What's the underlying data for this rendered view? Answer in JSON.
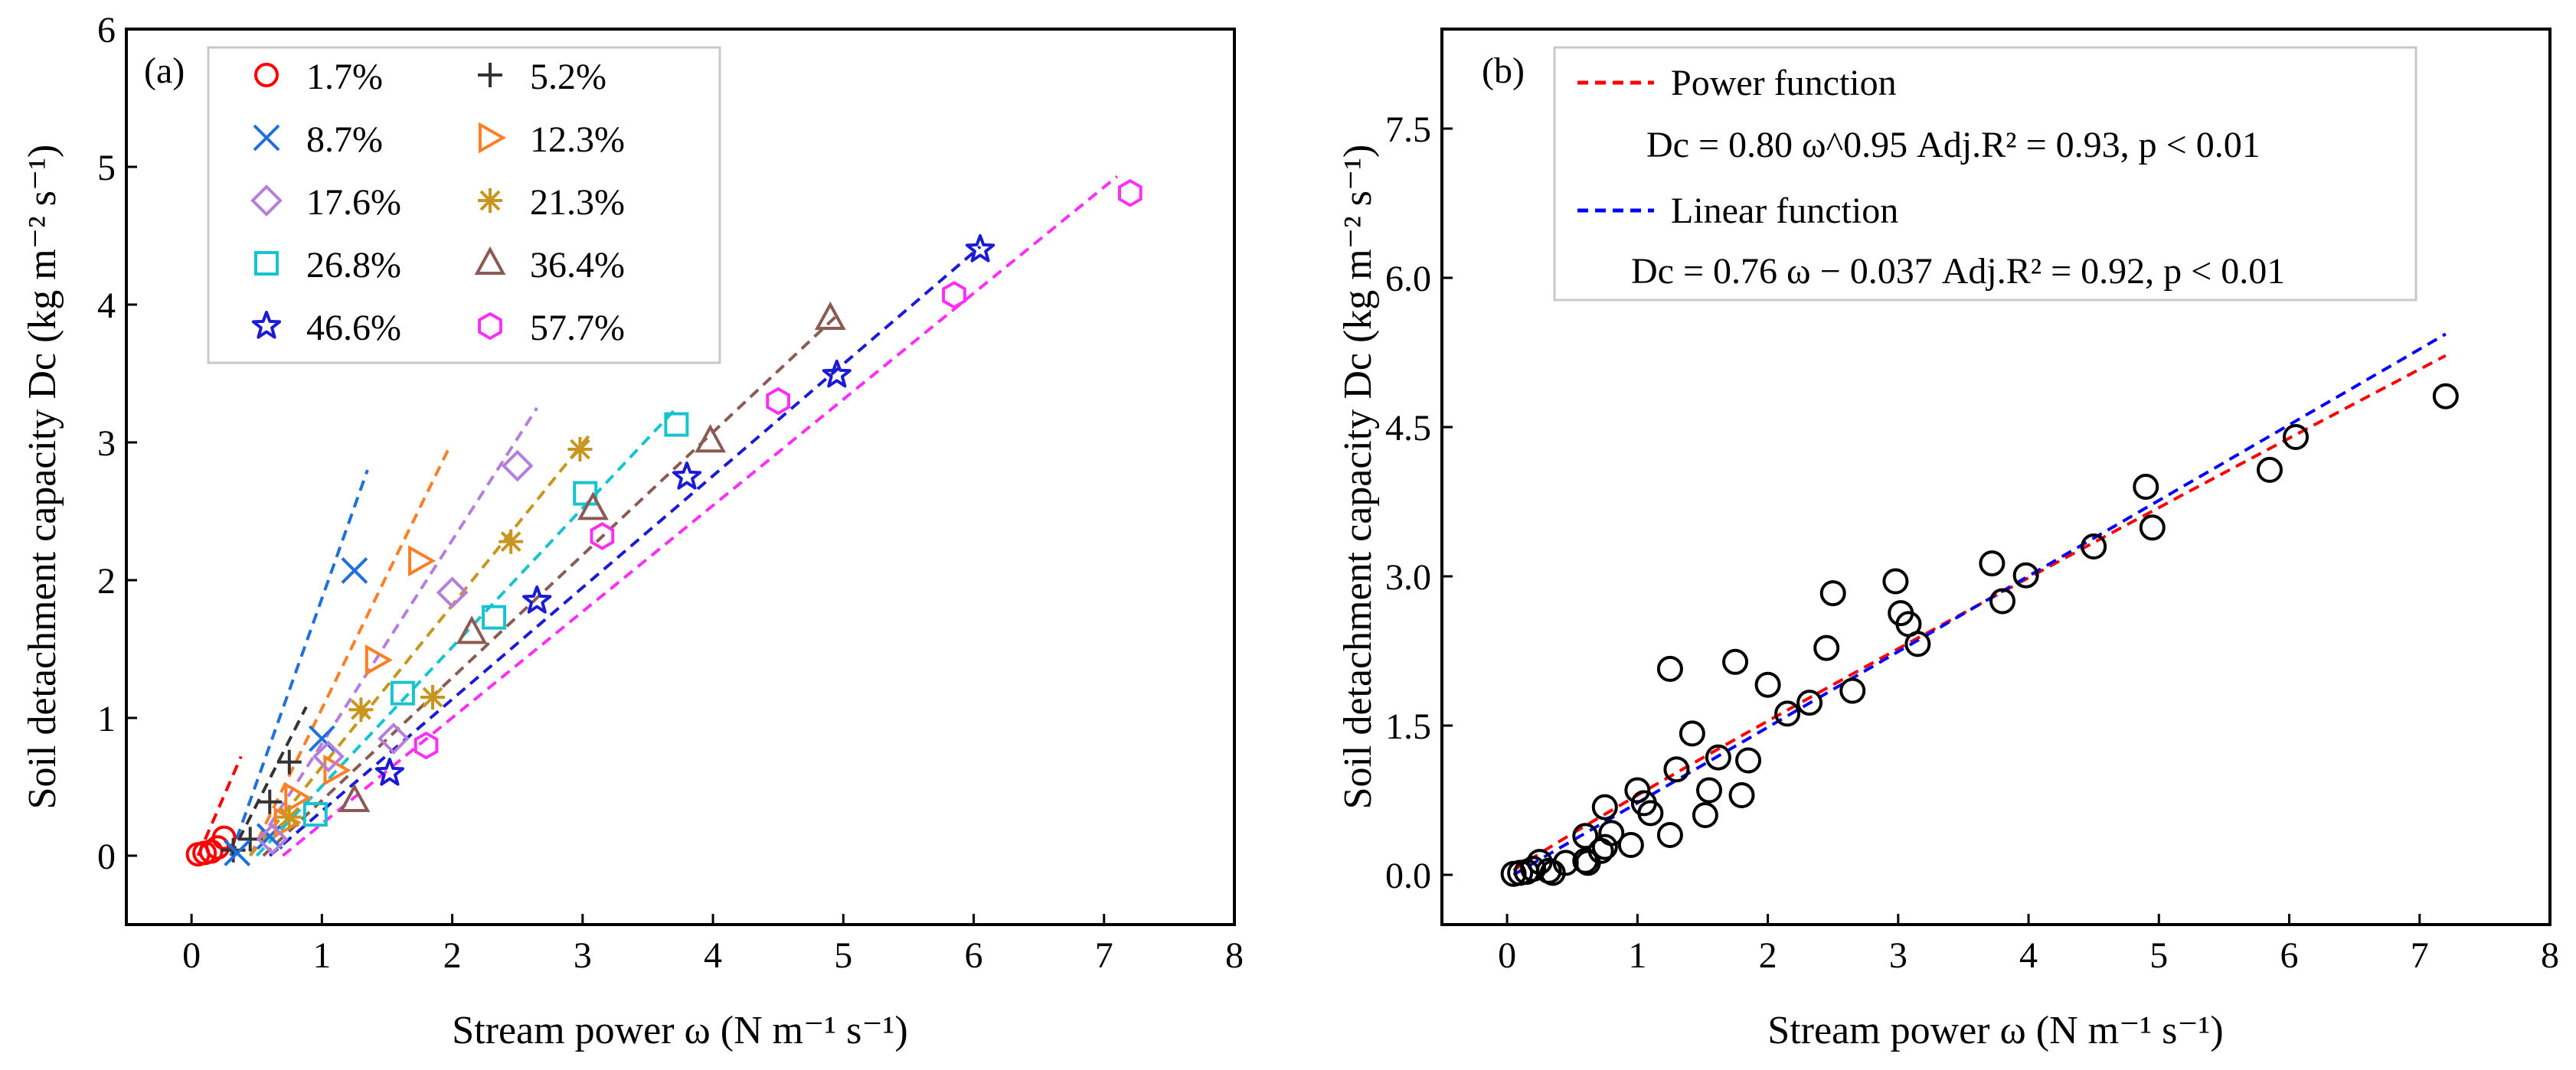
{
  "panels": {
    "a": {
      "label": "(a)",
      "xlabel": "Stream power ω (N m⁻¹ s⁻¹)",
      "ylabel": "Soil detachment capacity Dc (kg m⁻² s⁻¹)",
      "xlim": [
        -0.5,
        8
      ],
      "ylim": [
        -0.5,
        6
      ],
      "xticks": [
        "0",
        "1",
        "2",
        "3",
        "4",
        "5",
        "6",
        "7",
        "8"
      ],
      "yticks": [
        "0",
        "1",
        "2",
        "3",
        "4",
        "5",
        "6"
      ],
      "legend_entries": [
        "1.7%",
        "5.2%",
        "8.7%",
        "12.3%",
        "17.6%",
        "21.3%",
        "26.8%",
        "36.4%",
        "46.6%",
        "57.7%"
      ]
    },
    "b": {
      "label": "(b)",
      "xlabel": "Stream power ω (N m⁻¹ s⁻¹)",
      "ylabel": "Soil detachment capacity Dc (kg m⁻² s⁻¹)",
      "xlim": [
        -0.5,
        8
      ],
      "ylim": [
        -0.5,
        8.5
      ],
      "xticks": [
        "0",
        "1",
        "2",
        "3",
        "4",
        "5",
        "6",
        "7",
        "8"
      ],
      "yticks": [
        "0.0",
        "1.5",
        "3.0",
        "4.5",
        "6.0",
        "7.5"
      ],
      "legend": {
        "power_label": "Power function",
        "power_eq": "Dc = 0.80 ω^0.95   Adj.R² = 0.93,  p < 0.01",
        "linear_label": "Linear function",
        "linear_eq": "Dc = 0.76 ω − 0.037 Adj.R² = 0.92,  p < 0.01"
      }
    }
  },
  "chart_data": [
    {
      "type": "scatter",
      "panel": "a",
      "series": [
        {
          "name": "1.7%",
          "color": "#ff0000",
          "marker": "circle",
          "x": [
            0.05,
            0.1,
            0.15,
            0.2,
            0.25
          ],
          "y": [
            0.01,
            0.02,
            0.03,
            0.06,
            0.13
          ],
          "fit": [
            [
              0.05,
              0.0
            ],
            [
              0.38,
              0.72
            ]
          ]
        },
        {
          "name": "5.2%",
          "color": "#333333",
          "marker": "plus",
          "x": [
            0.32,
            0.45,
            0.6,
            0.75
          ],
          "y": [
            0.04,
            0.12,
            0.39,
            0.68
          ],
          "fit": [
            [
              0.3,
              0.0
            ],
            [
              0.88,
              1.08
            ]
          ]
        },
        {
          "name": "8.7%",
          "color": "#1f6fdd",
          "marker": "x",
          "x": [
            0.35,
            0.6,
            1.0,
            1.25
          ],
          "y": [
            0.02,
            0.14,
            0.85,
            2.07
          ],
          "fit": [
            [
              0.3,
              0.0
            ],
            [
              1.35,
              2.8
            ]
          ]
        },
        {
          "name": "12.3%",
          "color": "#ff7f27",
          "marker": "tri-right",
          "x": [
            0.72,
            0.8,
            1.1,
            1.42,
            1.75
          ],
          "y": [
            0.24,
            0.42,
            0.62,
            1.42,
            2.14
          ],
          "fit": [
            [
              0.45,
              0.0
            ],
            [
              1.97,
              2.95
            ]
          ]
        },
        {
          "name": "17.6%",
          "color": "#b57edc",
          "marker": "diamond",
          "x": [
            0.62,
            1.05,
            1.55,
            2.0,
            2.5
          ],
          "y": [
            0.12,
            0.72,
            0.85,
            1.91,
            2.83
          ],
          "fit": [
            [
              0.45,
              0.0
            ],
            [
              2.65,
              3.25
            ]
          ]
        },
        {
          "name": "21.3%",
          "color": "#c8961e",
          "marker": "asterisk",
          "x": [
            0.75,
            1.3,
            1.85,
            2.45,
            2.98
          ],
          "y": [
            0.28,
            1.06,
            1.15,
            2.28,
            2.95
          ],
          "fit": [
            [
              0.45,
              0.0
            ],
            [
              3.05,
              3.05
            ]
          ]
        },
        {
          "name": "26.8%",
          "color": "#17c3cf",
          "marker": "square",
          "x": [
            0.95,
            1.62,
            2.32,
            3.02,
            3.72
          ],
          "y": [
            0.3,
            1.18,
            1.73,
            2.63,
            3.13
          ],
          "fit": [
            [
              0.5,
              0.0
            ],
            [
              3.72,
              3.25
            ]
          ]
        },
        {
          "name": "36.4%",
          "color": "#8b5a52",
          "marker": "triangle",
          "x": [
            1.25,
            2.15,
            3.08,
            3.98,
            4.9
          ],
          "y": [
            0.4,
            1.62,
            2.52,
            3.01,
            3.9
          ],
          "fit": [
            [
              0.55,
              0.0
            ],
            [
              4.95,
              3.92
            ]
          ]
        },
        {
          "name": "46.6%",
          "color": "#1b1bd6",
          "marker": "star",
          "x": [
            1.52,
            2.65,
            3.8,
            4.95,
            6.05
          ],
          "y": [
            0.6,
            1.85,
            2.75,
            3.49,
            4.4
          ],
          "fit": [
            [
              0.6,
              0.0
            ],
            [
              6.05,
              4.42
            ]
          ]
        },
        {
          "name": "57.7%",
          "color": "#ff2ef7",
          "marker": "hexagon",
          "x": [
            1.8,
            3.15,
            4.5,
            5.85,
            7.2
          ],
          "y": [
            0.8,
            2.32,
            3.3,
            4.07,
            4.81
          ],
          "fit": [
            [
              0.7,
              0.0
            ],
            [
              7.1,
              4.93
            ]
          ]
        }
      ]
    },
    {
      "type": "scatter",
      "panel": "b",
      "points": {
        "x": [
          0.05,
          0.1,
          0.15,
          0.2,
          0.25,
          0.32,
          0.45,
          0.6,
          0.75,
          0.35,
          0.6,
          1.0,
          1.25,
          0.72,
          0.8,
          1.1,
          1.42,
          1.75,
          0.62,
          1.05,
          1.55,
          2.0,
          2.5,
          0.75,
          1.3,
          1.85,
          2.45,
          2.98,
          0.95,
          1.62,
          2.32,
          3.02,
          3.72,
          1.25,
          2.15,
          3.08,
          3.98,
          4.9,
          1.52,
          2.65,
          3.8,
          4.95,
          6.05,
          1.8,
          3.15,
          4.5,
          5.85,
          7.2
        ],
        "y": [
          0.01,
          0.02,
          0.03,
          0.06,
          0.13,
          0.04,
          0.12,
          0.39,
          0.68,
          0.02,
          0.14,
          0.85,
          2.07,
          0.24,
          0.42,
          0.62,
          1.42,
          2.14,
          0.12,
          0.72,
          0.85,
          1.91,
          2.83,
          0.28,
          1.06,
          1.15,
          2.28,
          2.95,
          0.3,
          1.18,
          1.73,
          2.63,
          3.13,
          0.4,
          1.62,
          2.52,
          3.01,
          3.9,
          0.6,
          1.85,
          2.75,
          3.49,
          4.4,
          0.8,
          2.32,
          3.3,
          4.07,
          4.81
        ]
      },
      "fits": [
        {
          "name": "Power function",
          "color": "#ff0000",
          "a": 0.8,
          "b": 0.95,
          "x_range": [
            0.05,
            7.2
          ]
        },
        {
          "name": "Linear function",
          "color": "#0000ff",
          "slope": 0.76,
          "intercept": -0.037,
          "x_range": [
            0.05,
            7.2
          ]
        }
      ]
    }
  ]
}
